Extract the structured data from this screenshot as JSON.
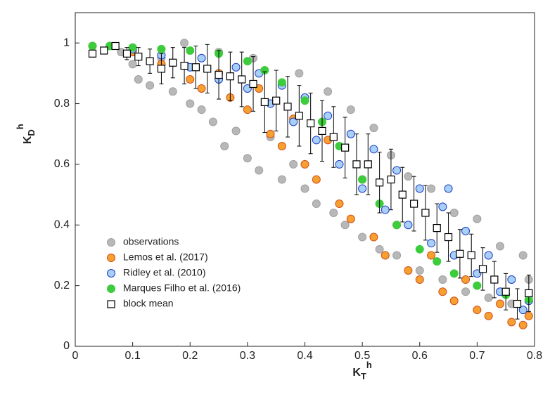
{
  "chart_data": {
    "type": "scatter",
    "xlabel": {
      "base": "K",
      "sub": "T",
      "sup": "h"
    },
    "ylabel": {
      "base": "K",
      "sub": "D",
      "sup": "h"
    },
    "xlim": [
      0,
      0.8
    ],
    "xticks": [
      0,
      0.1,
      0.2,
      0.3,
      0.4,
      0.5,
      0.6,
      0.7,
      0.8
    ],
    "ylim": [
      0,
      1.1
    ],
    "yticks": [
      0,
      0.2,
      0.4,
      0.6,
      0.8,
      1
    ],
    "legend": "lower left",
    "series": [
      {
        "name": "observations",
        "color": "#b8b8b8",
        "edge": "#a0a0a0",
        "marker": "circle",
        "x": [
          0.08,
          0.1,
          0.11,
          0.13,
          0.15,
          0.17,
          0.19,
          0.2,
          0.22,
          0.24,
          0.25,
          0.26,
          0.28,
          0.3,
          0.31,
          0.32,
          0.34,
          0.36,
          0.38,
          0.39,
          0.4,
          0.42,
          0.44,
          0.45,
          0.47,
          0.48,
          0.5,
          0.52,
          0.53,
          0.55,
          0.56,
          0.58,
          0.6,
          0.62,
          0.64,
          0.66,
          0.68,
          0.7,
          0.72,
          0.74,
          0.76,
          0.78,
          0.79
        ],
        "values": [
          0.97,
          0.93,
          0.88,
          0.86,
          0.95,
          0.84,
          1.0,
          0.8,
          0.78,
          0.74,
          0.97,
          0.66,
          0.71,
          0.62,
          0.95,
          0.58,
          0.69,
          0.55,
          0.6,
          0.9,
          0.52,
          0.47,
          0.84,
          0.44,
          0.4,
          0.78,
          0.36,
          0.72,
          0.32,
          0.63,
          0.3,
          0.56,
          0.25,
          0.52,
          0.22,
          0.44,
          0.18,
          0.42,
          0.16,
          0.33,
          0.14,
          0.3,
          0.22
        ]
      },
      {
        "name": "Lemos et al. (2017)",
        "color": "#f5a030",
        "edge": "#d0501a",
        "marker": "circle",
        "x": [
          0.03,
          0.1,
          0.15,
          0.2,
          0.22,
          0.25,
          0.27,
          0.3,
          0.32,
          0.34,
          0.36,
          0.38,
          0.4,
          0.42,
          0.44,
          0.46,
          0.48,
          0.5,
          0.52,
          0.54,
          0.56,
          0.58,
          0.6,
          0.62,
          0.64,
          0.66,
          0.68,
          0.7,
          0.72,
          0.74,
          0.76,
          0.78,
          0.79
        ],
        "values": [
          0.99,
          0.97,
          0.93,
          0.88,
          0.85,
          0.9,
          0.82,
          0.78,
          0.85,
          0.7,
          0.66,
          0.75,
          0.6,
          0.55,
          0.68,
          0.47,
          0.42,
          0.55,
          0.36,
          0.3,
          0.4,
          0.25,
          0.22,
          0.3,
          0.18,
          0.15,
          0.22,
          0.12,
          0.1,
          0.14,
          0.08,
          0.07,
          0.1
        ]
      },
      {
        "name": "Ridley et al. (2010)",
        "color": "#a8cff5",
        "edge": "#1a3cc8",
        "marker": "circle",
        "x": [
          0.1,
          0.15,
          0.2,
          0.22,
          0.25,
          0.28,
          0.3,
          0.32,
          0.34,
          0.36,
          0.38,
          0.4,
          0.42,
          0.44,
          0.46,
          0.48,
          0.5,
          0.52,
          0.54,
          0.56,
          0.58,
          0.6,
          0.62,
          0.64,
          0.65,
          0.66,
          0.68,
          0.7,
          0.72,
          0.74,
          0.76,
          0.78,
          0.79
        ],
        "values": [
          0.98,
          0.96,
          0.92,
          0.95,
          0.88,
          0.92,
          0.85,
          0.9,
          0.8,
          0.86,
          0.74,
          0.82,
          0.68,
          0.76,
          0.6,
          0.7,
          0.52,
          0.65,
          0.45,
          0.58,
          0.4,
          0.52,
          0.34,
          0.46,
          0.52,
          0.3,
          0.38,
          0.24,
          0.3,
          0.18,
          0.22,
          0.12,
          0.15
        ]
      },
      {
        "name": "Marques Filho et al. (2016)",
        "color": "#3ccc3c",
        "edge": "#3ccc3c",
        "marker": "circle",
        "x": [
          0.03,
          0.06,
          0.1,
          0.15,
          0.2,
          0.25,
          0.3,
          0.33,
          0.36,
          0.4,
          0.43,
          0.46,
          0.5,
          0.53,
          0.56,
          0.6,
          0.63,
          0.66,
          0.7,
          0.75,
          0.79
        ],
        "values": [
          0.99,
          0.99,
          0.985,
          0.98,
          0.975,
          0.965,
          0.94,
          0.91,
          0.87,
          0.81,
          0.74,
          0.66,
          0.55,
          0.47,
          0.4,
          0.32,
          0.28,
          0.24,
          0.2,
          0.17,
          0.155
        ]
      },
      {
        "name": "block mean",
        "color": "#ffffff",
        "edge": "#000000",
        "marker": "square",
        "x": [
          0.03,
          0.05,
          0.07,
          0.09,
          0.11,
          0.13,
          0.15,
          0.17,
          0.19,
          0.21,
          0.23,
          0.25,
          0.27,
          0.29,
          0.31,
          0.33,
          0.35,
          0.37,
          0.39,
          0.41,
          0.43,
          0.45,
          0.47,
          0.49,
          0.51,
          0.53,
          0.55,
          0.57,
          0.59,
          0.61,
          0.63,
          0.65,
          0.67,
          0.69,
          0.71,
          0.73,
          0.75,
          0.77,
          0.79
        ],
        "values": [
          0.965,
          0.975,
          0.99,
          0.965,
          0.955,
          0.94,
          0.915,
          0.935,
          0.925,
          0.92,
          0.915,
          0.895,
          0.89,
          0.88,
          0.865,
          0.805,
          0.81,
          0.79,
          0.76,
          0.735,
          0.71,
          0.69,
          0.655,
          0.6,
          0.6,
          0.54,
          0.55,
          0.5,
          0.47,
          0.44,
          0.39,
          0.36,
          0.305,
          0.3,
          0.255,
          0.22,
          0.18,
          0.14,
          0.175
        ],
        "errors": [
          0.01,
          0.01,
          0.01,
          0.02,
          0.03,
          0.04,
          0.05,
          0.05,
          0.06,
          0.07,
          0.08,
          0.08,
          0.08,
          0.09,
          0.09,
          0.1,
          0.1,
          0.1,
          0.1,
          0.1,
          0.1,
          0.1,
          0.1,
          0.1,
          0.1,
          0.1,
          0.1,
          0.09,
          0.09,
          0.09,
          0.08,
          0.08,
          0.08,
          0.07,
          0.07,
          0.06,
          0.06,
          0.05,
          0.06
        ]
      }
    ]
  }
}
